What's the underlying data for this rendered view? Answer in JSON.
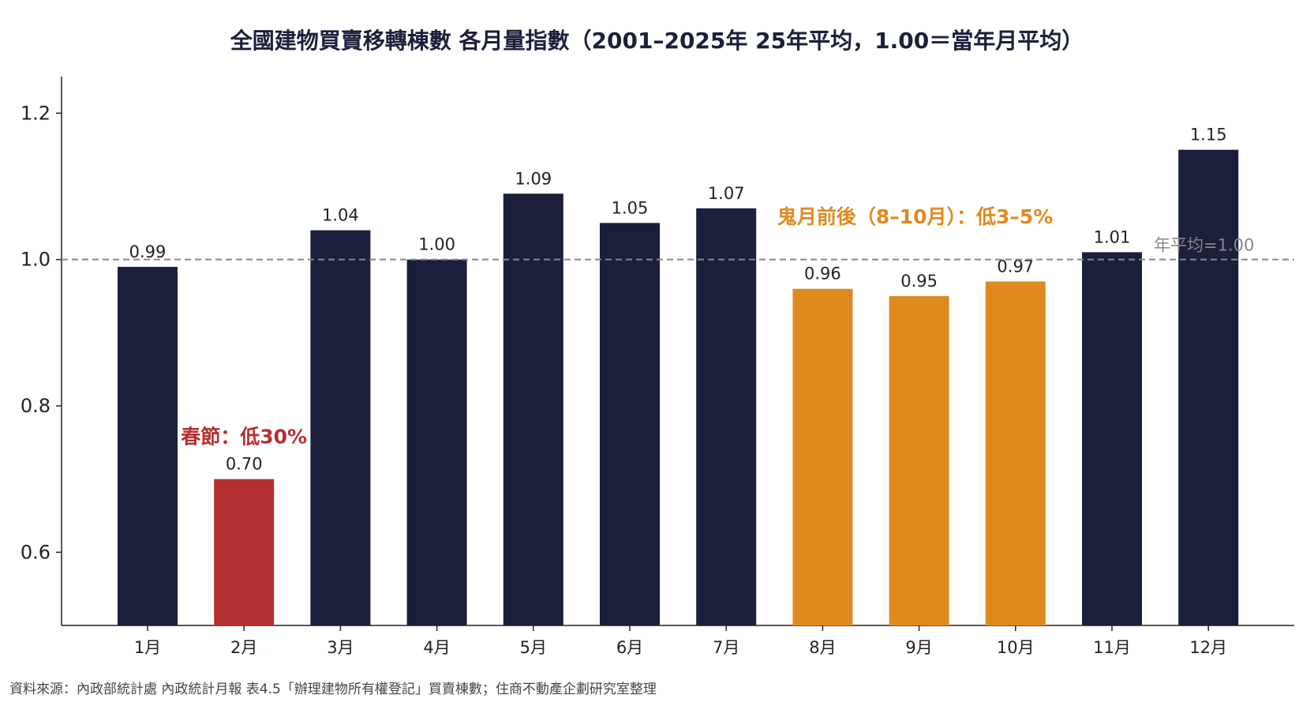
{
  "chart_data": {
    "type": "bar",
    "title": "全國建物買賣移轉棟數 各月量指數（2001–2025年 25年平均，1.00＝當年月平均）",
    "categories": [
      "1月",
      "2月",
      "3月",
      "4月",
      "5月",
      "6月",
      "7月",
      "8月",
      "9月",
      "10月",
      "11月",
      "12月"
    ],
    "values": [
      0.99,
      0.7,
      1.04,
      1.0,
      1.09,
      1.05,
      1.07,
      0.96,
      0.95,
      0.97,
      1.01,
      1.15
    ],
    "value_labels": [
      "0.99",
      "0.70",
      "1.04",
      "1.00",
      "1.09",
      "1.05",
      "1.07",
      "0.96",
      "0.95",
      "0.97",
      "1.01",
      "1.15"
    ],
    "bar_groups": [
      "normal",
      "spring",
      "normal",
      "normal",
      "normal",
      "normal",
      "normal",
      "ghost",
      "ghost",
      "ghost",
      "normal",
      "normal"
    ],
    "xlabel": "",
    "ylabel": "",
    "ylim": [
      0.5,
      1.25
    ],
    "yticks": [
      0.6,
      0.8,
      1.0,
      1.2
    ],
    "ytick_labels": [
      "0.6",
      "0.8",
      "1.0",
      "1.2"
    ],
    "grid": false,
    "reference_line": {
      "value": 1.0,
      "label": "年平均=1.00",
      "style": "dashed"
    },
    "annotations": [
      {
        "text": "春節：低30%",
        "category_index": 1,
        "color": "#b33030"
      },
      {
        "text": "鬼月前後（8–10月）：低3–5%",
        "category_index": 8,
        "color": "#e08a1e"
      }
    ]
  },
  "colors": {
    "normal": "#1b1f3b",
    "spring": "#b33030",
    "ghost": "#df8a1e",
    "reference_line": "#888888",
    "axis": "#222222"
  },
  "source_note": "資料來源：內政部統計處 內政統計月報 表4.5「辦理建物所有權登記」買賣棟數；住商不動產企劃研究室整理"
}
